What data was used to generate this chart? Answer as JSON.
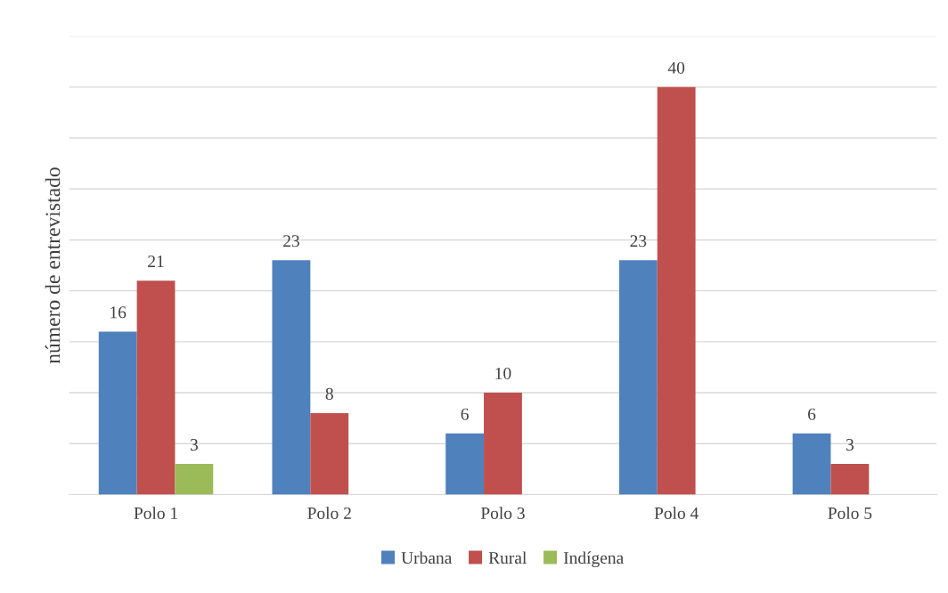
{
  "chart_data": {
    "type": "bar",
    "ylabel": "número de entrevistado",
    "categories": [
      "Polo 1",
      "Polo 2",
      "Polo 3",
      "Polo 4",
      "Polo 5"
    ],
    "series": [
      {
        "name": "Urbana",
        "color": "#4f81bd",
        "values": [
          16,
          23,
          6,
          23,
          6
        ]
      },
      {
        "name": "Rural",
        "color": "#c0504d",
        "values": [
          21,
          8,
          10,
          40,
          3
        ]
      },
      {
        "name": "Indígena",
        "color": "#9bbb59",
        "values": [
          3,
          null,
          null,
          null,
          null
        ]
      }
    ],
    "ylim": [
      0,
      45
    ],
    "yticks": [
      {
        "value": 0,
        "label": null
      },
      {
        "value": 5,
        "label": null
      },
      {
        "value": 10,
        "label": null
      },
      {
        "value": 15,
        "label": null
      },
      {
        "value": 20,
        "label": null
      },
      {
        "value": 25,
        "label": null
      },
      {
        "value": 30,
        "label": null
      },
      {
        "value": 35,
        "label": null
      },
      {
        "value": 40,
        "label": null
      },
      {
        "value": 45,
        "label": null
      }
    ],
    "tick_labels": "x",
    "grid": "y",
    "legend": "bottom",
    "data_labels": true
  }
}
